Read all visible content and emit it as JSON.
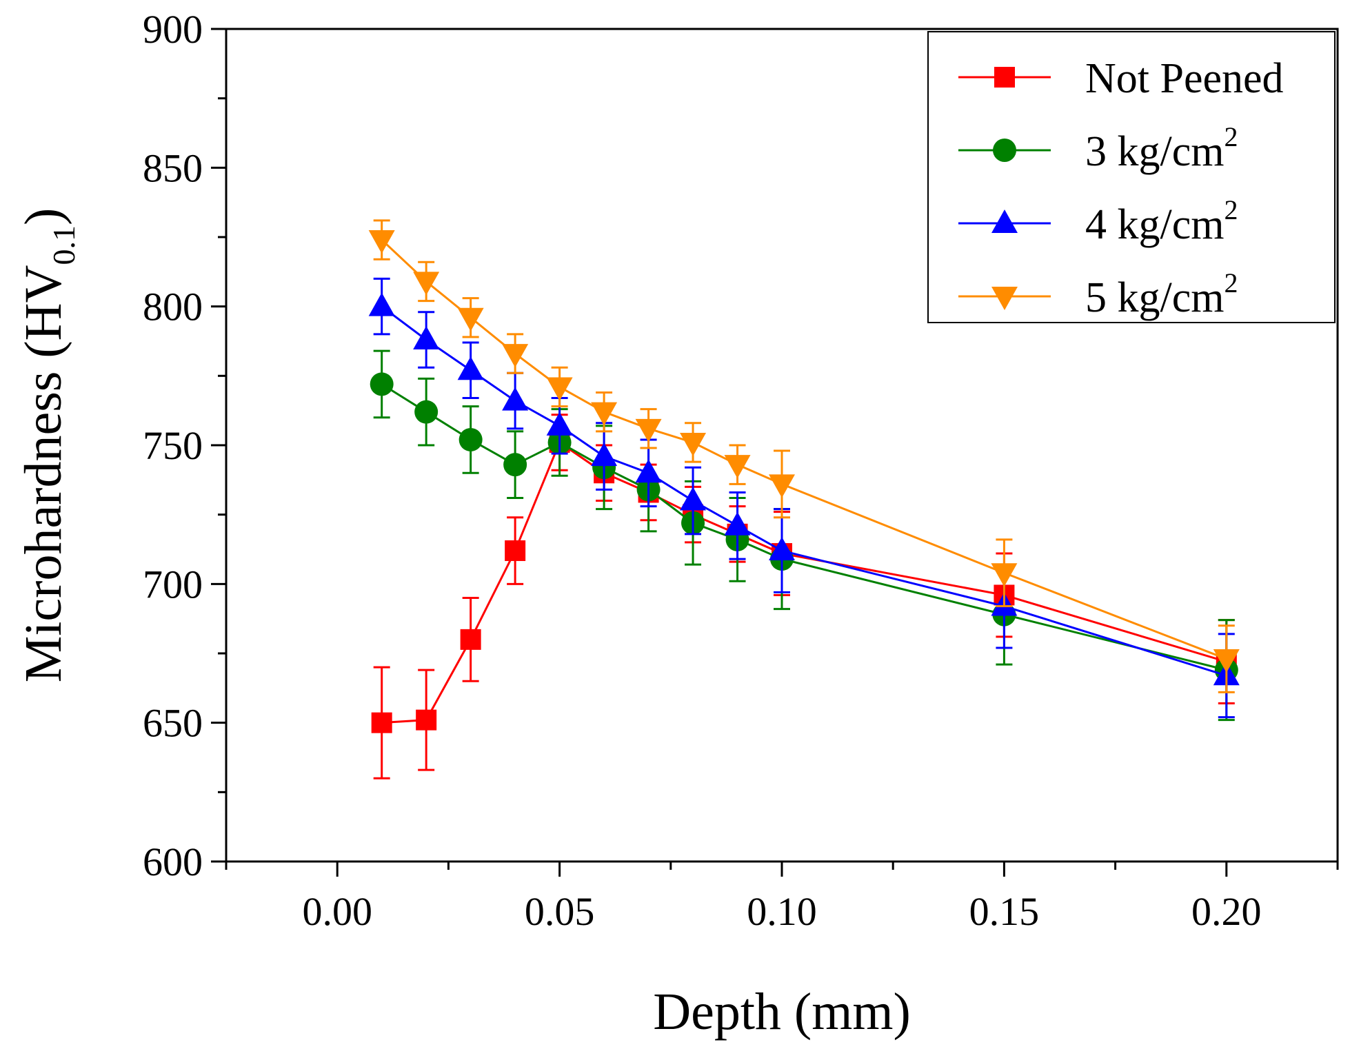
{
  "chart_data": {
    "type": "line",
    "title": "",
    "xlabel": "Depth (mm)",
    "ylabel": {
      "main": "Microhardness (HV",
      "sub": "0.1",
      "close": ")"
    },
    "xlim": [
      -0.025,
      0.225
    ],
    "ylim": [
      600,
      900
    ],
    "x_ticks": [
      0.0,
      0.05,
      0.1,
      0.15,
      0.2
    ],
    "x_tick_labels": [
      "0.00",
      "0.05",
      "0.10",
      "0.15",
      "0.20"
    ],
    "y_ticks": [
      600,
      650,
      700,
      750,
      800,
      850,
      900
    ],
    "y_tick_labels": [
      "600",
      "650",
      "700",
      "750",
      "800",
      "850",
      "900"
    ],
    "x_minor_step": 0.025,
    "y_minor_step": 25,
    "grid": false,
    "legend_position": "top-right",
    "x": [
      0.01,
      0.02,
      0.03,
      0.04,
      0.05,
      0.06,
      0.07,
      0.08,
      0.09,
      0.1,
      0.15,
      0.2
    ],
    "series": [
      {
        "name": "Not Peened",
        "label_main": "Not Peened",
        "label_sup": "",
        "color": "#ff0000",
        "marker": "square",
        "values": [
          650,
          651,
          680,
          712,
          751,
          740,
          733,
          725,
          718,
          711,
          696,
          672
        ],
        "errors": [
          20,
          18,
          15,
          12,
          10,
          10,
          10,
          10,
          10,
          15,
          15,
          15
        ]
      },
      {
        "name": "3 kg/cm2",
        "label_main": "3 kg/cm",
        "label_sup": "2",
        "color": "#008000",
        "marker": "circle",
        "values": [
          772,
          762,
          752,
          743,
          751,
          742,
          734,
          722,
          716,
          709,
          689,
          669
        ],
        "errors": [
          12,
          12,
          12,
          12,
          12,
          15,
          15,
          15,
          15,
          18,
          18,
          18
        ]
      },
      {
        "name": "4 kg/cm2",
        "label_main": "4 kg/cm",
        "label_sup": "2",
        "color": "#0000ff",
        "marker": "triangle-up",
        "values": [
          800,
          788,
          777,
          766,
          757,
          746,
          740,
          730,
          721,
          712,
          692,
          667
        ],
        "errors": [
          10,
          10,
          10,
          10,
          10,
          12,
          12,
          12,
          12,
          15,
          15,
          15
        ]
      },
      {
        "name": "5 kg/cm2",
        "label_main": "5 kg/cm",
        "label_sup": "2",
        "color": "#ff8c00",
        "marker": "triangle-down",
        "values": [
          824,
          809,
          796,
          783,
          771,
          762,
          756,
          751,
          743,
          736,
          704,
          673
        ],
        "errors": [
          7,
          7,
          7,
          7,
          7,
          7,
          7,
          7,
          7,
          12,
          12,
          12
        ]
      }
    ]
  }
}
